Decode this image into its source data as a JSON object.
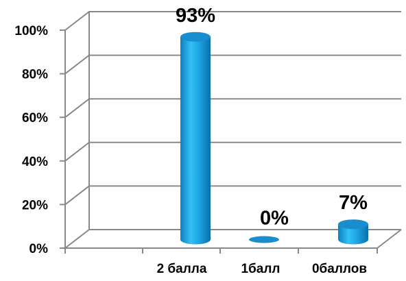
{
  "chart_data": {
    "type": "bar",
    "categories": [
      "2 балла",
      "1балл",
      "0баллов"
    ],
    "values": [
      93,
      0,
      7
    ],
    "data_labels": [
      "93%",
      "0%",
      "7%"
    ],
    "y_ticks": [
      "0%",
      "20%",
      "40%",
      "60%",
      "80%",
      "100%"
    ],
    "ylim": [
      0,
      100
    ],
    "grid": true,
    "bar_color": "#1BA1E2",
    "bar_dark_color": "#0A6FA8",
    "bar_top_color": "#1A8DD0",
    "grid_color": "#888888"
  }
}
